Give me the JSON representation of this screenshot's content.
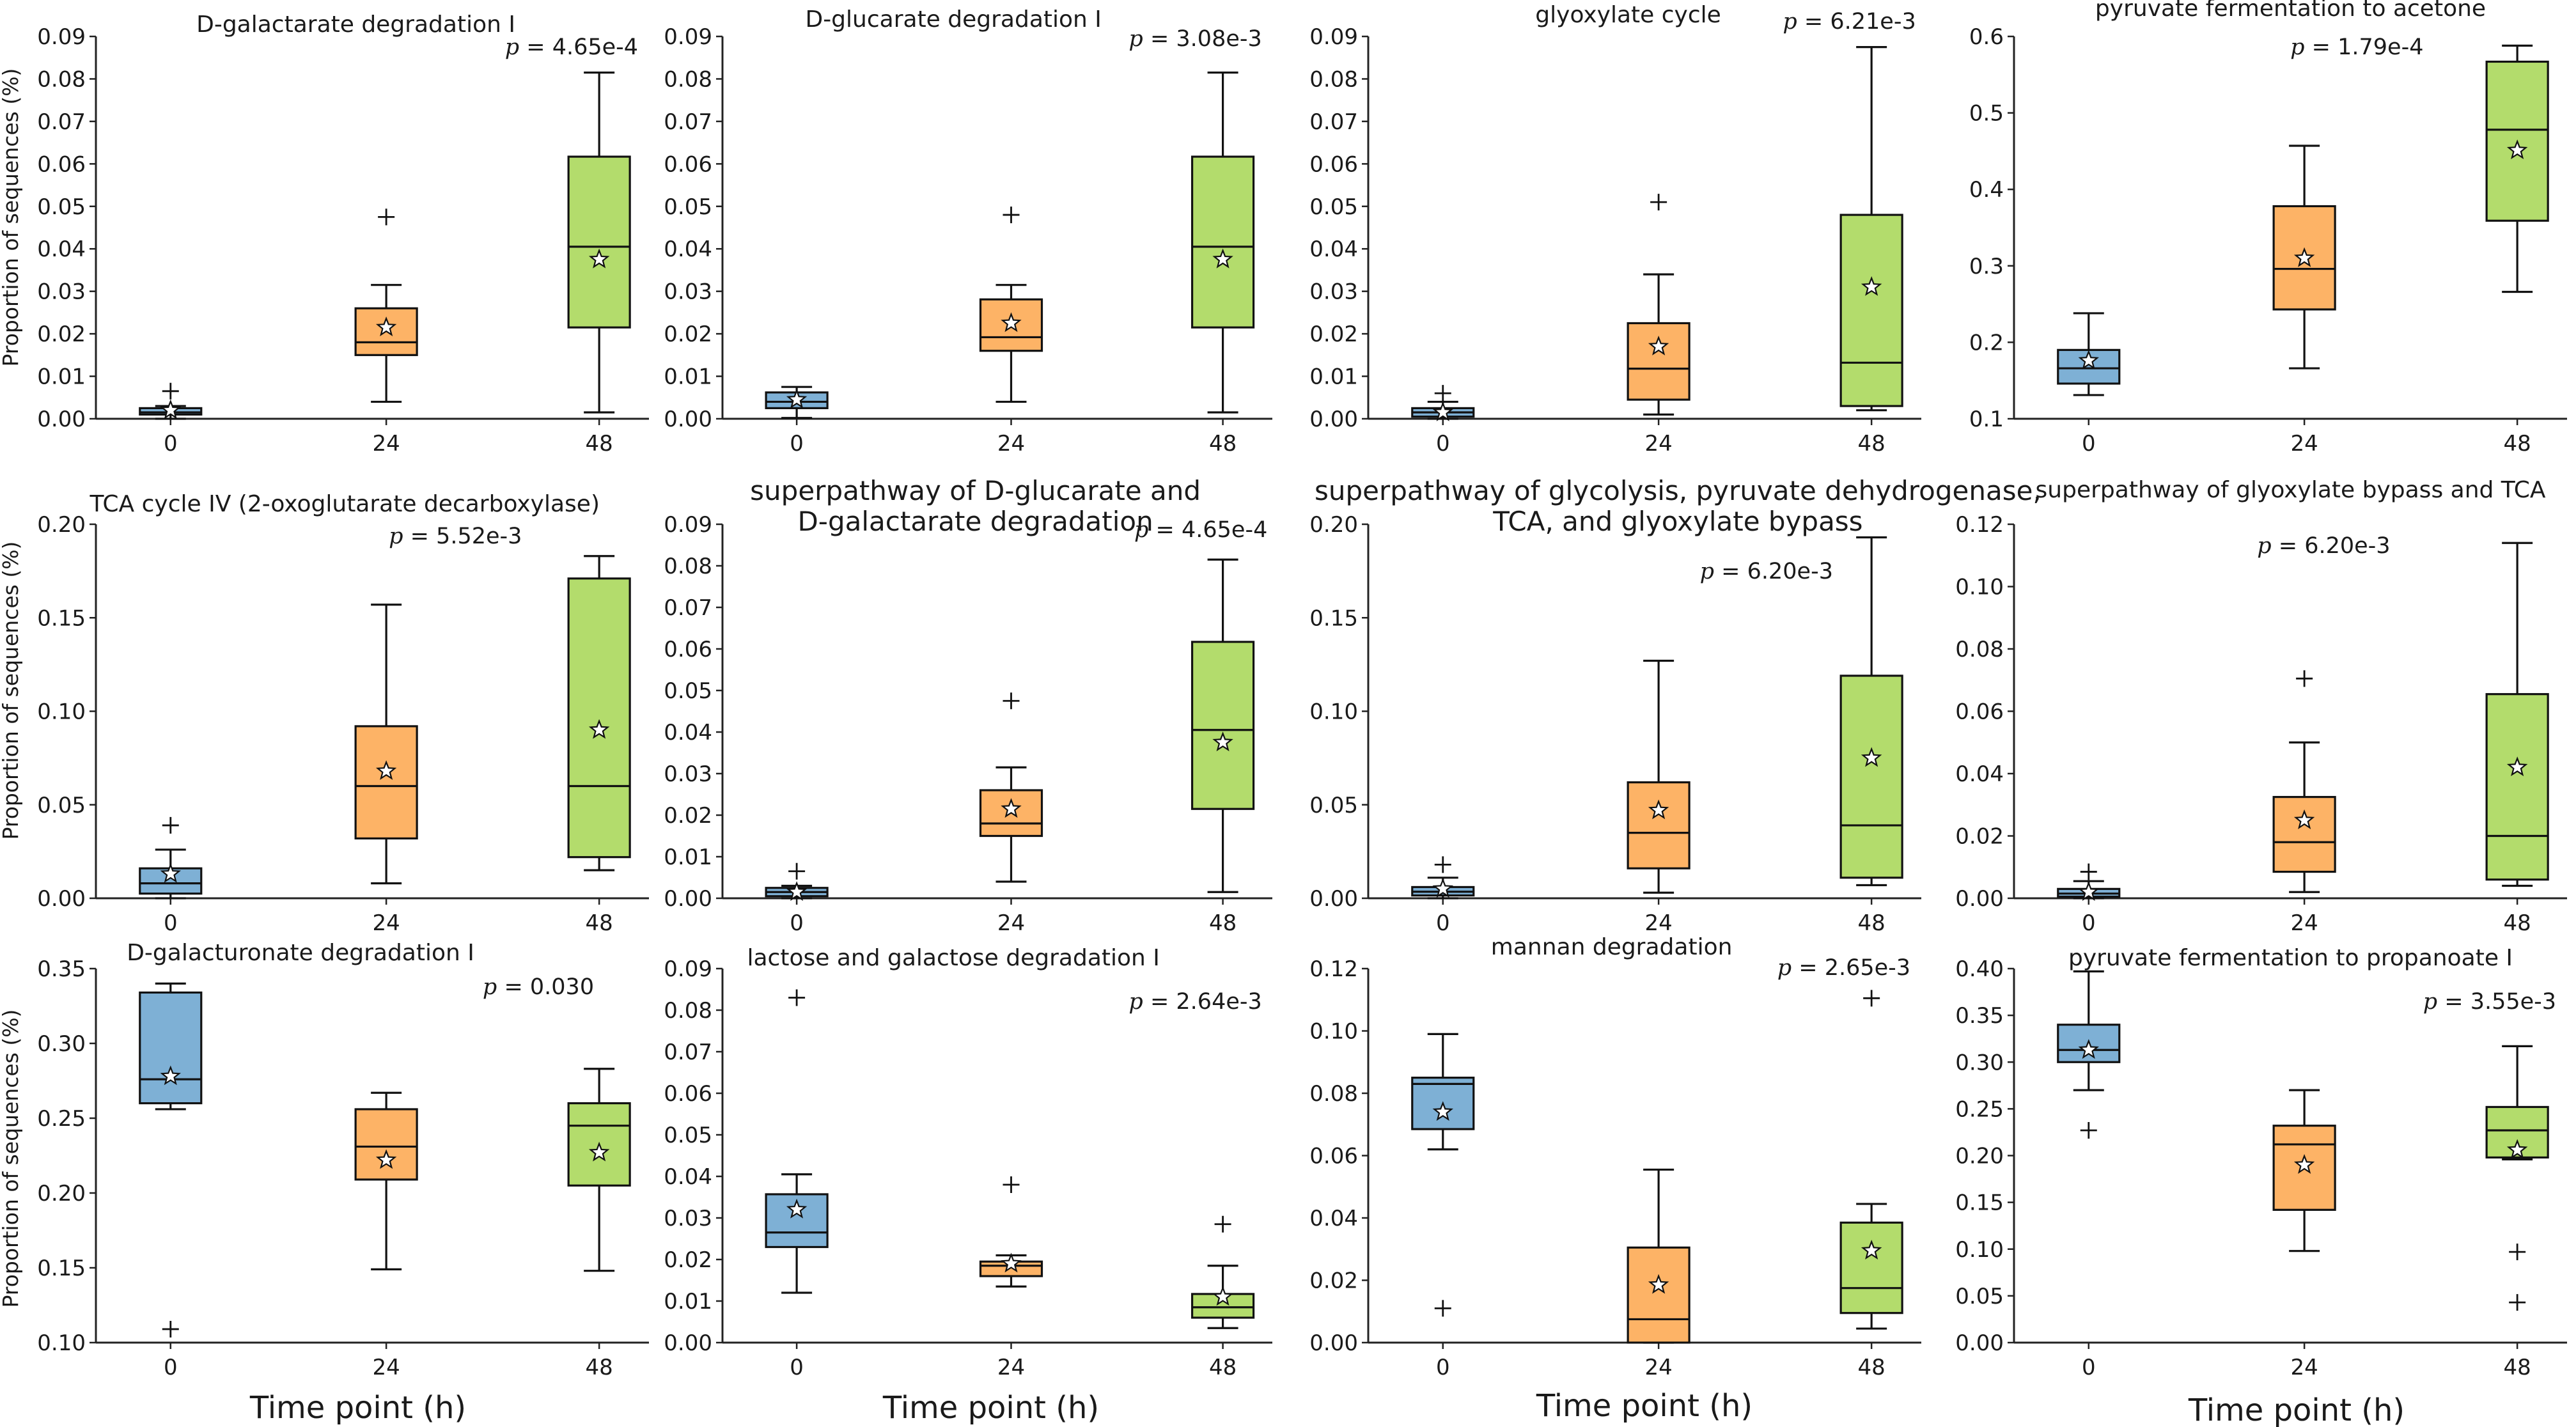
{
  "figure": {
    "xlabel": "Time point (h)",
    "ylabel": "Proportion of sequences (%)"
  },
  "colors": {
    "0": "#7eb0d5",
    "24": "#fdb366",
    "48": "#b3dc6c"
  },
  "chart_data": [
    {
      "type": "box",
      "title": "D-galactarate degradation I",
      "p_label": "p",
      "p_value": "= 4.65e-4",
      "categories": [
        "0",
        "24",
        "48"
      ],
      "ylim": [
        0,
        0.09
      ],
      "yticks": [
        "0.00",
        "0.01",
        "0.02",
        "0.03",
        "0.04",
        "0.05",
        "0.06",
        "0.07",
        "0.08",
        "0.09"
      ],
      "boxes": [
        {
          "min": 0,
          "q1": 0.001,
          "median": 0.0015,
          "q3": 0.0025,
          "max": 0.003,
          "mean": 0.002,
          "outliers": [
            0.0065
          ]
        },
        {
          "min": 0.004,
          "q1": 0.015,
          "median": 0.018,
          "q3": 0.026,
          "max": 0.0315,
          "mean": 0.0215,
          "outliers": [
            0.0475
          ]
        },
        {
          "min": 0.0015,
          "q1": 0.0215,
          "median": 0.0405,
          "q3": 0.0617,
          "max": 0.0815,
          "mean": 0.0375,
          "outliers": []
        }
      ]
    },
    {
      "type": "box",
      "title": "D-glucarate degradation I",
      "p_label": "p",
      "p_value": "= 3.08e-3",
      "categories": [
        "0",
        "24",
        "48"
      ],
      "ylim": [
        0,
        0.09
      ],
      "yticks": [
        "0.00",
        "0.01",
        "0.02",
        "0.03",
        "0.04",
        "0.05",
        "0.06",
        "0.07",
        "0.08",
        "0.09"
      ],
      "boxes": [
        {
          "min": 0.0002,
          "q1": 0.0025,
          "median": 0.004,
          "q3": 0.0062,
          "max": 0.0075,
          "mean": 0.0045,
          "outliers": []
        },
        {
          "min": 0.004,
          "q1": 0.016,
          "median": 0.0192,
          "q3": 0.0281,
          "max": 0.0315,
          "mean": 0.0225,
          "outliers": [
            0.048
          ]
        },
        {
          "min": 0.0015,
          "q1": 0.0215,
          "median": 0.0405,
          "q3": 0.0617,
          "max": 0.0815,
          "mean": 0.0375,
          "outliers": []
        }
      ]
    },
    {
      "type": "box",
      "title": "glyoxylate cycle",
      "p_label": "p",
      "p_value": "= 6.21e-3",
      "categories": [
        "0",
        "24",
        "48"
      ],
      "ylim": [
        0,
        0.09
      ],
      "yticks": [
        "0.00",
        "0.01",
        "0.02",
        "0.03",
        "0.04",
        "0.05",
        "0.06",
        "0.07",
        "0.08",
        "0.09"
      ],
      "boxes": [
        {
          "min": 0,
          "q1": 0.0005,
          "median": 0.0015,
          "q3": 0.0025,
          "max": 0.004,
          "mean": 0.0015,
          "outliers": [
            0.006
          ]
        },
        {
          "min": 0.001,
          "q1": 0.0045,
          "median": 0.0118,
          "q3": 0.0225,
          "max": 0.034,
          "mean": 0.017,
          "outliers": [
            0.051
          ]
        },
        {
          "min": 0.002,
          "q1": 0.003,
          "median": 0.0132,
          "q3": 0.048,
          "max": 0.0875,
          "mean": 0.031,
          "outliers": []
        }
      ]
    },
    {
      "type": "box",
      "title": "pyruvate fermentation to acetone",
      "p_label": "p",
      "p_value": "= 1.79e-4",
      "categories": [
        "0",
        "24",
        "48"
      ],
      "ylim": [
        0.1,
        0.6
      ],
      "yticks": [
        "0.1",
        "0.2",
        "0.3",
        "0.4",
        "0.5",
        "0.6"
      ],
      "boxes": [
        {
          "min": 0.131,
          "q1": 0.146,
          "median": 0.166,
          "q3": 0.19,
          "max": 0.238,
          "mean": 0.176,
          "outliers": []
        },
        {
          "min": 0.166,
          "q1": 0.243,
          "median": 0.296,
          "q3": 0.378,
          "max": 0.457,
          "mean": 0.31,
          "outliers": []
        },
        {
          "min": 0.266,
          "q1": 0.359,
          "median": 0.478,
          "q3": 0.567,
          "max": 0.588,
          "mean": 0.451,
          "outliers": []
        }
      ]
    },
    {
      "type": "box",
      "title": "TCA cycle IV (2-oxoglutarate decarboxylase)",
      "p_label": "p",
      "p_value": "= 5.52e-3",
      "categories": [
        "0",
        "24",
        "48"
      ],
      "ylim": [
        0,
        0.2
      ],
      "yticks": [
        "0.00",
        "0.05",
        "0.10",
        "0.15",
        "0.20"
      ],
      "boxes": [
        {
          "min": 0,
          "q1": 0.0025,
          "median": 0.008,
          "q3": 0.016,
          "max": 0.026,
          "mean": 0.013,
          "outliers": [
            0.039
          ]
        },
        {
          "min": 0.008,
          "q1": 0.032,
          "median": 0.06,
          "q3": 0.092,
          "max": 0.157,
          "mean": 0.068,
          "outliers": []
        },
        {
          "min": 0.015,
          "q1": 0.022,
          "median": 0.06,
          "q3": 0.171,
          "max": 0.183,
          "mean": 0.09,
          "outliers": []
        }
      ]
    },
    {
      "type": "box",
      "title": "superpathway of D-glucarate and D-galactarate degradation",
      "p_label": "p",
      "p_value": "= 4.65e-4",
      "categories": [
        "0",
        "24",
        "48"
      ],
      "ylim": [
        0,
        0.09
      ],
      "yticks": [
        "0.00",
        "0.01",
        "0.02",
        "0.03",
        "0.04",
        "0.05",
        "0.06",
        "0.07",
        "0.08",
        "0.09"
      ],
      "boxes": [
        {
          "min": 0,
          "q1": 0.0005,
          "median": 0.0015,
          "q3": 0.0025,
          "max": 0.003,
          "mean": 0.0015,
          "outliers": [
            0.0065
          ]
        },
        {
          "min": 0.004,
          "q1": 0.015,
          "median": 0.018,
          "q3": 0.026,
          "max": 0.0315,
          "mean": 0.0215,
          "outliers": [
            0.0475
          ]
        },
        {
          "min": 0.0015,
          "q1": 0.0215,
          "median": 0.0405,
          "q3": 0.0617,
          "max": 0.0815,
          "mean": 0.0375,
          "outliers": []
        }
      ]
    },
    {
      "type": "box",
      "title": "superpathway of glycolysis, pyruvate dehydrogenase, TCA, and glyoxylate bypass",
      "p_label": "p",
      "p_value": "= 6.20e-3",
      "categories": [
        "0",
        "24",
        "48"
      ],
      "ylim": [
        0,
        0.2
      ],
      "yticks": [
        "0.00",
        "0.05",
        "0.10",
        "0.15",
        "0.20"
      ],
      "boxes": [
        {
          "min": 0,
          "q1": 0.0015,
          "median": 0.0035,
          "q3": 0.006,
          "max": 0.011,
          "mean": 0.005,
          "outliers": [
            0.018
          ]
        },
        {
          "min": 0.003,
          "q1": 0.016,
          "median": 0.035,
          "q3": 0.062,
          "max": 0.127,
          "mean": 0.047,
          "outliers": []
        },
        {
          "min": 0.007,
          "q1": 0.011,
          "median": 0.039,
          "q3": 0.119,
          "max": 0.193,
          "mean": 0.075,
          "outliers": []
        }
      ]
    },
    {
      "type": "box",
      "title": "superpathway of glyoxylate bypass and TCA",
      "p_label": "p",
      "p_value": "= 6.20e-3",
      "categories": [
        "0",
        "24",
        "48"
      ],
      "ylim": [
        0,
        0.12
      ],
      "yticks": [
        "0.00",
        "0.02",
        "0.04",
        "0.06",
        "0.08",
        "0.10",
        "0.12"
      ],
      "boxes": [
        {
          "min": 0,
          "q1": 0.0005,
          "median": 0.0015,
          "q3": 0.003,
          "max": 0.0055,
          "mean": 0.002,
          "outliers": [
            0.0085
          ]
        },
        {
          "min": 0.002,
          "q1": 0.0085,
          "median": 0.018,
          "q3": 0.0325,
          "max": 0.05,
          "mean": 0.025,
          "outliers": [
            0.0705
          ]
        },
        {
          "min": 0.004,
          "q1": 0.006,
          "median": 0.02,
          "q3": 0.0655,
          "max": 0.114,
          "mean": 0.042,
          "outliers": []
        }
      ]
    },
    {
      "type": "box",
      "title": "D-galacturonate degradation I",
      "p_label": "p",
      "p_value": "= 0.030",
      "categories": [
        "0",
        "24",
        "48"
      ],
      "ylim": [
        0.1,
        0.35
      ],
      "yticks": [
        "0.10",
        "0.15",
        "0.20",
        "0.25",
        "0.30",
        "0.35"
      ],
      "boxes": [
        {
          "min": 0.256,
          "q1": 0.26,
          "median": 0.276,
          "q3": 0.334,
          "max": 0.34,
          "mean": 0.278,
          "outliers": [
            0.109
          ]
        },
        {
          "min": 0.149,
          "q1": 0.209,
          "median": 0.231,
          "q3": 0.256,
          "max": 0.267,
          "mean": 0.222,
          "outliers": []
        },
        {
          "min": 0.148,
          "q1": 0.205,
          "median": 0.245,
          "q3": 0.26,
          "max": 0.283,
          "mean": 0.227,
          "outliers": []
        }
      ]
    },
    {
      "type": "box",
      "title": "lactose and galactose degradation I",
      "p_label": "p",
      "p_value": "= 2.64e-3",
      "categories": [
        "0",
        "24",
        "48"
      ],
      "ylim": [
        0,
        0.09
      ],
      "yticks": [
        "0.00",
        "0.01",
        "0.02",
        "0.03",
        "0.04",
        "0.05",
        "0.06",
        "0.07",
        "0.08",
        "0.09"
      ],
      "boxes": [
        {
          "min": 0.012,
          "q1": 0.023,
          "median": 0.0265,
          "q3": 0.0357,
          "max": 0.0405,
          "mean": 0.032,
          "outliers": [
            0.083
          ]
        },
        {
          "min": 0.0135,
          "q1": 0.016,
          "median": 0.0185,
          "q3": 0.0195,
          "max": 0.021,
          "mean": 0.019,
          "outliers": [
            0.038
          ]
        },
        {
          "min": 0.0035,
          "q1": 0.006,
          "median": 0.0085,
          "q3": 0.0117,
          "max": 0.0185,
          "mean": 0.011,
          "outliers": [
            0.0285
          ]
        }
      ]
    },
    {
      "type": "box",
      "title": "mannan degradation",
      "p_label": "p",
      "p_value": "= 2.65e-3",
      "categories": [
        "0",
        "24",
        "48"
      ],
      "ylim": [
        0,
        0.12
      ],
      "yticks": [
        "0.00",
        "0.02",
        "0.04",
        "0.06",
        "0.08",
        "0.10",
        "0.12"
      ],
      "boxes": [
        {
          "min": 0.062,
          "q1": 0.0685,
          "median": 0.083,
          "q3": 0.085,
          "max": 0.099,
          "mean": 0.074,
          "outliers": [
            0.011
          ]
        },
        {
          "min": 0,
          "q1": 0,
          "median": 0.0075,
          "q3": 0.0305,
          "max": 0.0555,
          "mean": 0.0185,
          "outliers": []
        },
        {
          "min": 0.0045,
          "q1": 0.0095,
          "median": 0.0175,
          "q3": 0.0385,
          "max": 0.0445,
          "mean": 0.0295,
          "outliers": [
            0.1105
          ]
        }
      ]
    },
    {
      "type": "box",
      "title": "pyruvate fermentation to propanoate I",
      "p_label": "p",
      "p_value": "= 3.55e-3",
      "categories": [
        "0",
        "24",
        "48"
      ],
      "ylim": [
        0,
        0.4
      ],
      "yticks": [
        "0.00",
        "0.05",
        "0.10",
        "0.15",
        "0.20",
        "0.25",
        "0.30",
        "0.35",
        "0.40"
      ],
      "boxes": [
        {
          "min": 0.27,
          "q1": 0.3,
          "median": 0.313,
          "q3": 0.34,
          "max": 0.397,
          "mean": 0.313,
          "outliers": [
            0.227
          ]
        },
        {
          "min": 0.098,
          "q1": 0.142,
          "median": 0.212,
          "q3": 0.232,
          "max": 0.27,
          "mean": 0.19,
          "outliers": []
        },
        {
          "min": 0.196,
          "q1": 0.198,
          "median": 0.227,
          "q3": 0.252,
          "max": 0.317,
          "mean": 0.206,
          "outliers": [
            0.097,
            0.043
          ]
        }
      ]
    }
  ]
}
